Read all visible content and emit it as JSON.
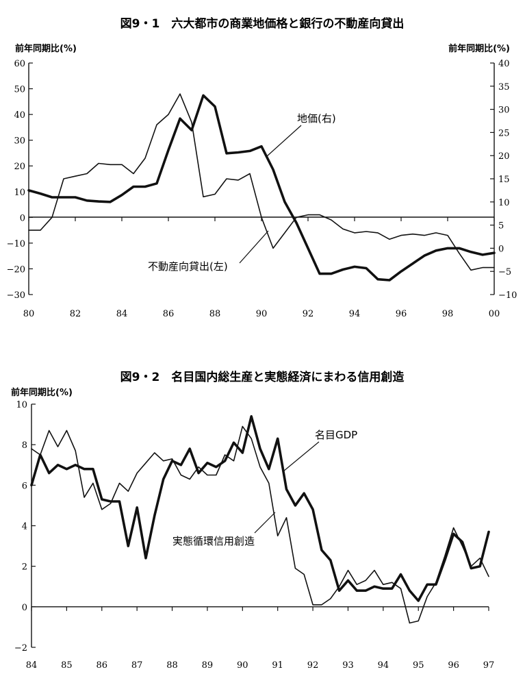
{
  "chart_data": [
    {
      "type": "line",
      "title": "図9・1　六大都市の商業地価格と銀行の不動産向貸出",
      "ylabel_left": "前年同期比(%)",
      "ylabel_right": "前年同期比(%)",
      "xlim": [
        80,
        100
      ],
      "ylim_left": [
        -30,
        60
      ],
      "ylim_right": [
        -10,
        40
      ],
      "x_ticks": [
        "80",
        "82",
        "84",
        "86",
        "88",
        "90",
        "92",
        "94",
        "96",
        "98",
        "00"
      ],
      "y_ticks_left": [
        "60",
        "50",
        "40",
        "30",
        "20",
        "10",
        "0",
        "−10",
        "−20",
        "−30"
      ],
      "y_ticks_right": [
        "40",
        "35",
        "30",
        "25",
        "20",
        "15",
        "10",
        "5",
        "0",
        "−5",
        "−10"
      ],
      "grid": false,
      "series": [
        {
          "name": "不動産向貸出(左)",
          "axis": "left",
          "style": "thin",
          "x": [
            80,
            80.5,
            81,
            81.5,
            82,
            82.5,
            83,
            83.5,
            84,
            84.5,
            85,
            85.5,
            86,
            86.5,
            87,
            87.5,
            88,
            88.5,
            89,
            89.5,
            90,
            90.5,
            91,
            91.5,
            92,
            92.5,
            93,
            93.5,
            94,
            94.5,
            95,
            95.5,
            96,
            96.5,
            97,
            97.5,
            98,
            98.5,
            99,
            99.5,
            100
          ],
          "y": [
            -5,
            -5,
            0,
            15,
            16,
            17,
            21,
            20.5,
            20.5,
            17,
            23,
            36,
            40,
            48,
            37,
            8,
            9,
            15,
            14.5,
            17,
            0,
            -12,
            -6,
            0,
            1,
            1,
            -1,
            -4.5,
            -6,
            -5.5,
            -6,
            -8.5,
            -7,
            -6.5,
            -7,
            -6,
            -7,
            -14,
            -20.5,
            -19.5,
            -19.5
          ]
        },
        {
          "name": "地価(右)",
          "axis": "right",
          "style": "bold",
          "x": [
            80,
            80.5,
            81,
            81.5,
            82,
            82.5,
            83,
            83.5,
            84,
            84.5,
            85,
            85.5,
            86,
            86.5,
            87,
            87.5,
            88,
            88.5,
            89,
            89.5,
            90,
            90.5,
            91,
            91.5,
            92,
            92.5,
            93,
            93.5,
            94,
            94.5,
            95,
            95.5,
            96,
            96.5,
            97,
            97.5,
            98,
            98.5,
            99,
            99.5,
            100
          ],
          "y": [
            12.5,
            11.8,
            11,
            11,
            11,
            10.3,
            10.1,
            10,
            11.5,
            13.3,
            13.3,
            14,
            21.2,
            28,
            25.5,
            33,
            30.6,
            20.5,
            20.7,
            21,
            22,
            17,
            10,
            5.5,
            0,
            -5.5,
            -5.5,
            -4.6,
            -4,
            -4.3,
            -6.7,
            -6.9,
            -5,
            -3.3,
            -1.6,
            -0.5,
            0,
            0,
            -0.8,
            -1.4,
            -1
          ]
        }
      ],
      "annotations": [
        {
          "text": "地価(右)"
        },
        {
          "text": "不動産向貸出(左)"
        }
      ]
    },
    {
      "type": "line",
      "title": "図9・2　名目国内総生産と実態経済にまわる信用創造",
      "ylabel": "前年同期比(%)",
      "xlim": [
        84,
        97
      ],
      "ylim": [
        -2,
        10
      ],
      "x_ticks": [
        "84",
        "85",
        "86",
        "87",
        "88",
        "89",
        "90",
        "91",
        "92",
        "93",
        "94",
        "95",
        "96",
        "97"
      ],
      "y_ticks": [
        "10",
        "8",
        "6",
        "4",
        "2",
        "0",
        "−2"
      ],
      "grid": false,
      "series": [
        {
          "name": "名目GDP",
          "style": "bold",
          "x": [
            84,
            84.25,
            84.5,
            84.75,
            85,
            85.25,
            85.5,
            85.75,
            86,
            86.25,
            86.5,
            86.75,
            87,
            87.25,
            87.5,
            87.75,
            88,
            88.25,
            88.5,
            88.75,
            89,
            89.25,
            89.5,
            89.75,
            90,
            90.25,
            90.5,
            90.75,
            91,
            91.25,
            91.5,
            91.75,
            92,
            92.25,
            92.5,
            92.75,
            93,
            93.25,
            93.5,
            93.75,
            94,
            94.25,
            94.5,
            94.75,
            95,
            95.25,
            95.5,
            95.75,
            96,
            96.25,
            96.5,
            96.75,
            97
          ],
          "y": [
            6.0,
            7.5,
            6.6,
            7.0,
            6.8,
            7.0,
            6.8,
            6.8,
            5.3,
            5.2,
            5.2,
            3.0,
            4.9,
            2.4,
            4.5,
            6.3,
            7.2,
            7.0,
            7.8,
            6.6,
            7.1,
            6.9,
            7.2,
            8.1,
            7.6,
            9.4,
            7.8,
            6.8,
            8.3,
            5.8,
            5.0,
            5.6,
            4.8,
            2.8,
            2.3,
            0.8,
            1.3,
            0.8,
            0.8,
            1.0,
            0.9,
            0.9,
            1.6,
            0.8,
            0.3,
            1.1,
            1.1,
            2.3,
            3.6,
            3.2,
            1.9,
            2.0,
            3.7
          ]
        },
        {
          "name": "実態循環信用創造",
          "style": "thin",
          "x": [
            84,
            84.25,
            84.5,
            84.75,
            85,
            85.25,
            85.5,
            85.75,
            86,
            86.25,
            86.5,
            86.75,
            87,
            87.25,
            87.5,
            87.75,
            88,
            88.25,
            88.5,
            88.75,
            89,
            89.25,
            89.5,
            89.75,
            90,
            90.25,
            90.5,
            90.75,
            91,
            91.25,
            91.5,
            91.75,
            92,
            92.25,
            92.5,
            92.75,
            93,
            93.25,
            93.5,
            93.75,
            94,
            94.25,
            94.5,
            94.75,
            95,
            95.25,
            95.5,
            95.75,
            96,
            96.25,
            96.5,
            96.75,
            97
          ],
          "y": [
            7.8,
            7.5,
            8.7,
            7.9,
            8.7,
            7.7,
            5.4,
            6.1,
            4.8,
            5.1,
            6.1,
            5.7,
            6.6,
            7.1,
            7.6,
            7.2,
            7.3,
            6.5,
            6.3,
            6.9,
            6.5,
            6.5,
            7.5,
            7.2,
            8.9,
            8.3,
            6.9,
            6.1,
            3.5,
            4.4,
            1.9,
            1.6,
            0.1,
            0.1,
            0.4,
            1.0,
            1.8,
            1.1,
            1.3,
            1.8,
            1.1,
            1.2,
            0.9,
            -0.8,
            -0.7,
            0.5,
            1.2,
            2.5,
            3.9,
            3.0,
            2.0,
            2.4,
            1.5
          ]
        }
      ],
      "annotations": [
        {
          "text": "名目GDP"
        },
        {
          "text": "実態循環信用創造"
        }
      ]
    }
  ]
}
